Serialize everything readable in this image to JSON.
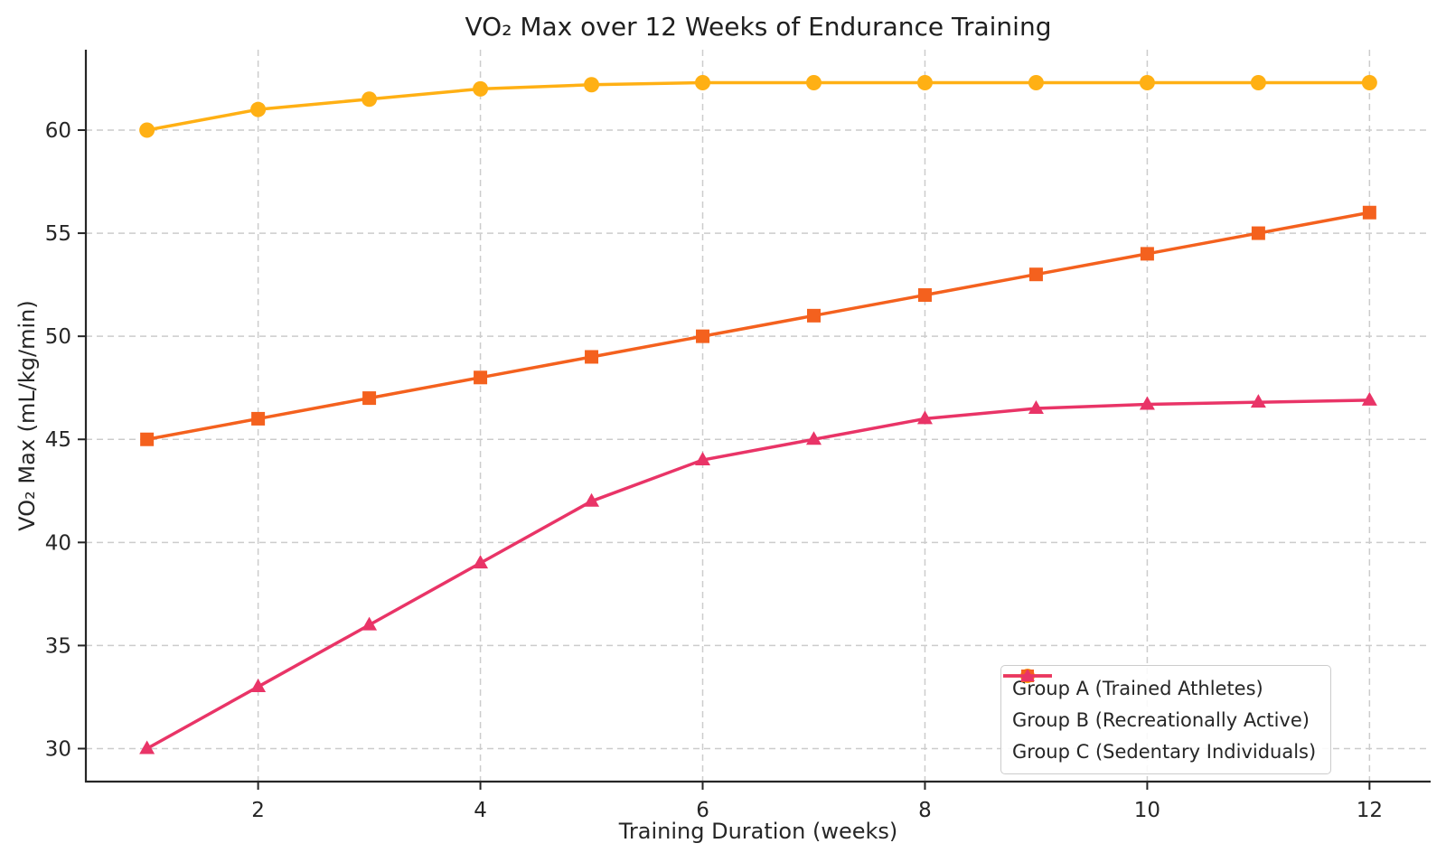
{
  "chart_data": {
    "type": "line",
    "title": "VO₂ Max over 12 Weeks of Endurance Training",
    "xlabel": "Training Duration (weeks)",
    "ylabel": "VO₂ Max (mL/kg/min)",
    "x": [
      1,
      2,
      3,
      4,
      5,
      6,
      7,
      8,
      9,
      10,
      11,
      12
    ],
    "series": [
      {
        "name": "Group A (Trained Athletes)",
        "marker": "circle",
        "color": "#FFB014",
        "values": [
          60,
          61,
          61.5,
          62,
          62.2,
          62.3,
          62.3,
          62.3,
          62.3,
          62.3,
          62.3,
          62.3
        ]
      },
      {
        "name": "Group B (Recreationally Active)",
        "marker": "square",
        "color": "#F4611E",
        "values": [
          45,
          46,
          47,
          48,
          49,
          50,
          51,
          52,
          53,
          54,
          55,
          56
        ]
      },
      {
        "name": "Group C (Sedentary Individuals)",
        "marker": "triangle",
        "color": "#E93467",
        "values": [
          30,
          33,
          36,
          39,
          42,
          44,
          45,
          46,
          46.5,
          46.7,
          46.8,
          46.9
        ]
      }
    ],
    "xticks": [
      2,
      4,
      6,
      8,
      10,
      12
    ],
    "yticks": [
      30,
      35,
      40,
      45,
      50,
      55,
      60
    ],
    "xlim": [
      0.45,
      12.55
    ],
    "ylim": [
      28.4,
      63.9
    ],
    "grid": true,
    "legend_position": "lower right",
    "style": {
      "background": "#ffffff",
      "grid_color": "#cccccc",
      "spine_color": "#262626",
      "text_color": "#262626",
      "tick_color": "#262626"
    }
  }
}
